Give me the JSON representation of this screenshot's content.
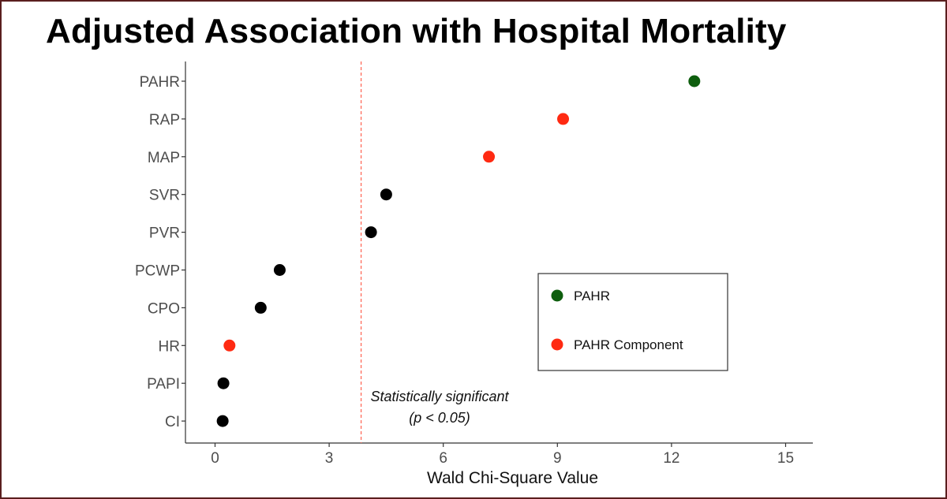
{
  "title": "Adjusted Association with Hospital Mortality",
  "colors": {
    "pahr": "#0e5e0e",
    "component": "#ff2a12",
    "other": "#000000",
    "threshold": "#ff6a5a"
  },
  "chart_data": {
    "type": "scatter",
    "title": "Adjusted Association with Hospital Mortality",
    "xlabel": "Wald Chi-Square Value",
    "ylabel": "",
    "xlim": [
      -0.7,
      15.7
    ],
    "x_ticks": [
      0,
      3,
      6,
      9,
      12,
      15
    ],
    "categories": [
      "PAHR",
      "RAP",
      "MAP",
      "SVR",
      "PVR",
      "PCWP",
      "CPO",
      "HR",
      "PAPI",
      "CI"
    ],
    "points": [
      {
        "label": "PAHR",
        "x": 12.6,
        "group": "pahr"
      },
      {
        "label": "RAP",
        "x": 9.15,
        "group": "component"
      },
      {
        "label": "MAP",
        "x": 7.2,
        "group": "component"
      },
      {
        "label": "SVR",
        "x": 4.5,
        "group": "other"
      },
      {
        "label": "PVR",
        "x": 4.1,
        "group": "other"
      },
      {
        "label": "PCWP",
        "x": 1.7,
        "group": "other"
      },
      {
        "label": "CPO",
        "x": 1.2,
        "group": "other"
      },
      {
        "label": "HR",
        "x": 0.38,
        "group": "component"
      },
      {
        "label": "PAPI",
        "x": 0.22,
        "group": "other"
      },
      {
        "label": "CI",
        "x": 0.2,
        "group": "other"
      }
    ],
    "threshold": {
      "x": 3.84,
      "annotation_line1": "Statistically significant",
      "annotation_line2": "(p < 0.05)"
    },
    "legend": {
      "position": "right-center",
      "entries": [
        {
          "label": "PAHR",
          "group": "pahr"
        },
        {
          "label": "PAHR Component",
          "group": "component"
        }
      ]
    },
    "grid": false
  }
}
